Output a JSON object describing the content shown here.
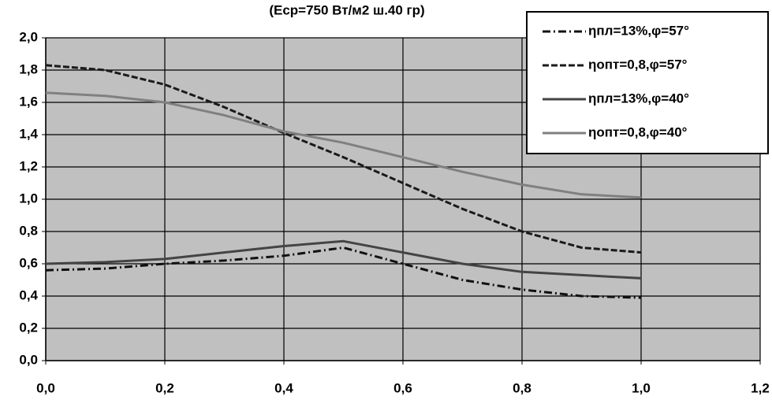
{
  "chart_data": {
    "type": "line",
    "subtitle": "(Еср=750 Вт/м2 ш.40 гр)",
    "x": [
      0,
      0.1,
      0.2,
      0.3,
      0.4,
      0.5,
      0.6,
      0.7,
      0.8,
      0.9,
      1.0
    ],
    "series": [
      {
        "name": "ηпл=13%,φ=57°",
        "color": "#111111",
        "dash": "10 4 2 4",
        "values": [
          0.56,
          0.57,
          0.6,
          0.62,
          0.65,
          0.7,
          0.6,
          0.5,
          0.44,
          0.4,
          0.39
        ]
      },
      {
        "name": "ηопт=0,8,φ=57°",
        "color": "#1a1a1a",
        "dash": "8 3",
        "values": [
          1.83,
          1.8,
          1.71,
          1.57,
          1.41,
          1.26,
          1.1,
          0.94,
          0.8,
          0.7,
          0.67
        ]
      },
      {
        "name": "ηпл=13%,φ=40°",
        "color": "#444444",
        "dash": "",
        "values": [
          0.6,
          0.61,
          0.63,
          0.67,
          0.71,
          0.74,
          0.67,
          0.6,
          0.55,
          0.53,
          0.51
        ]
      },
      {
        "name": "ηопт=0,8,φ=40°",
        "color": "#808080",
        "dash": "",
        "values": [
          1.66,
          1.64,
          1.6,
          1.52,
          1.42,
          1.35,
          1.26,
          1.17,
          1.09,
          1.03,
          1.01
        ]
      }
    ],
    "xlim": [
      0,
      1.2
    ],
    "xticks": [
      {
        "value": 0,
        "label": "0,0"
      },
      {
        "value": 0.2,
        "label": "0,2"
      },
      {
        "value": 0.4,
        "label": "0,4"
      },
      {
        "value": 0.6,
        "label": "0,6"
      },
      {
        "value": 0.8,
        "label": "0,8"
      },
      {
        "value": 1.0,
        "label": "1,0"
      },
      {
        "value": 1.2,
        "label": "1,2"
      }
    ],
    "ylim": [
      0,
      2
    ],
    "yticks": [
      {
        "value": 0,
        "label": "0,0"
      },
      {
        "value": 0.2,
        "label": "0,2"
      },
      {
        "value": 0.4,
        "label": "0,4"
      },
      {
        "value": 0.6,
        "label": "0,6"
      },
      {
        "value": 0.8,
        "label": "0,8"
      },
      {
        "value": 1.0,
        "label": "1,0"
      },
      {
        "value": 1.2,
        "label": "1,2"
      },
      {
        "value": 1.4,
        "label": "1,4"
      },
      {
        "value": 1.6,
        "label": "1,6"
      },
      {
        "value": 1.8,
        "label": "1,8"
      },
      {
        "value": 2.0,
        "label": "2,0"
      }
    ],
    "grid": true,
    "legend": "top-right",
    "plot_background": "#c0c0c0"
  }
}
